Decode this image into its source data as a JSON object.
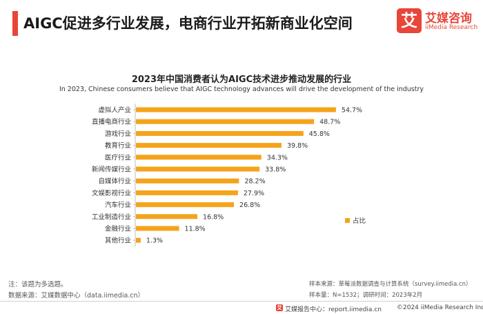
{
  "header": {
    "headline": "AIGC促进多行业发展，电商行业开拓新商业化空间",
    "logo_mark": "艾",
    "logo_cn": "艾媒咨询",
    "logo_en": "iiMedia Research"
  },
  "chart_data": {
    "type": "bar",
    "orientation": "horizontal",
    "title": "2023年中国消费者认为AIGC技术进步推动发展的行业",
    "subtitle": "In 2023, Chinese consumers believe that AIGC technology advances will drive the development of the industry",
    "categories": [
      "虚拟人产业",
      "直播电商行业",
      "游戏行业",
      "教育行业",
      "医疗行业",
      "新闻传媒行业",
      "自媒体行业",
      "文娱影视行业",
      "汽车行业",
      "工业制造行业",
      "金融行业",
      "其他行业"
    ],
    "values": [
      54.7,
      48.7,
      45.8,
      39.8,
      34.3,
      33.8,
      28.2,
      27.9,
      26.8,
      16.8,
      11.8,
      1.3
    ],
    "value_labels": [
      "54.7%",
      "48.7%",
      "45.8%",
      "39.8%",
      "34.3%",
      "33.8%",
      "28.2%",
      "27.9%",
      "26.8%",
      "16.8%",
      "11.8%",
      "1.3%"
    ],
    "series": [
      {
        "name": "占比",
        "color": "#f5a31a"
      }
    ],
    "xlim": [
      0,
      60
    ],
    "legend": "right",
    "grid": false
  },
  "footer": {
    "note": "注：该题为多选题。",
    "source": "数据来源：艾媒数据中心（data.iimedia.cn）",
    "sample_source": "样本来源：草莓派数据调查与计算系统（survey.iimedia.cn）",
    "sample_info": "样本量：N=1532；调研时间：2023年2月",
    "report_center": "艾媒报告中心：report.iimedia.cn",
    "copyright": "©2024  iiMedia Research  Inc"
  }
}
